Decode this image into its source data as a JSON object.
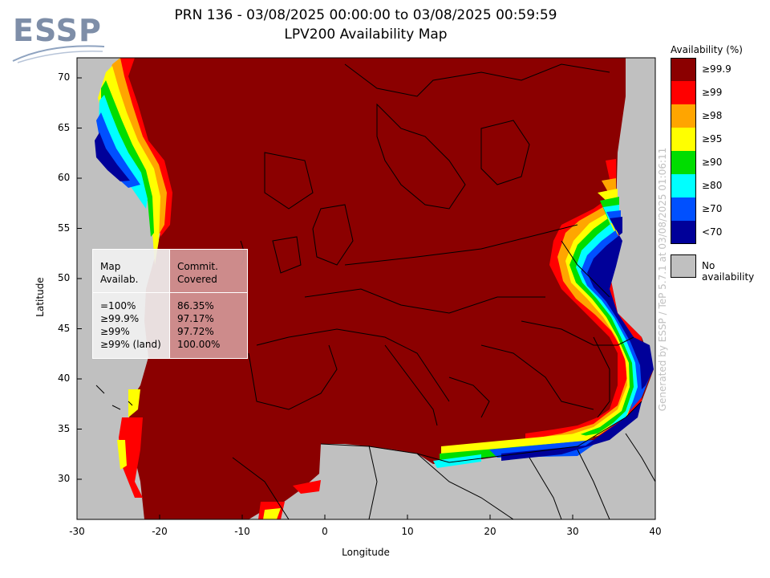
{
  "logo": {
    "text": "ESSP"
  },
  "title_line1": "PRN 136 - 03/08/2025 00:00:00 to 03/08/2025 00:59:59",
  "title_line2": "LPV200 Availability Map",
  "axes": {
    "xlabel": "Longitude",
    "ylabel": "Latitude",
    "xlim": [
      -30,
      40
    ],
    "ylim": [
      26,
      72
    ],
    "xticks": [
      "-30",
      "-20",
      "-10",
      "0",
      "10",
      "20",
      "30",
      "40"
    ],
    "yticks": [
      "70",
      "65",
      "60",
      "55",
      "50",
      "45",
      "40",
      "35",
      "30"
    ]
  },
  "legend": {
    "title": "Availability (%)",
    "items": [
      {
        "label": "≥99.9",
        "color": "#8b0000"
      },
      {
        "label": "≥99",
        "color": "#ff0000"
      },
      {
        "label": "≥98",
        "color": "#ffa500"
      },
      {
        "label": "≥95",
        "color": "#ffff00"
      },
      {
        "label": "≥90",
        "color": "#00dd00"
      },
      {
        "label": "≥80",
        "color": "#00ffff"
      },
      {
        "label": "≥70",
        "color": "#0050ff"
      },
      {
        "label": "<70",
        "color": "#000099"
      }
    ],
    "no_availability": {
      "label": "No availability",
      "color": "#c0c0c0"
    }
  },
  "stats": {
    "header_left": "Map\nAvailab.",
    "header_right": "Commit.\nCovered",
    "rows_left": "=100%\n≥99.9%\n≥99%\n≥99% (land)",
    "rows_right": "86.35%\n97.17%\n97.72%\n100.00%"
  },
  "credit": "Generated by ESSP / TeP 5.7.1 at 03/08/2025 01:06:11"
}
